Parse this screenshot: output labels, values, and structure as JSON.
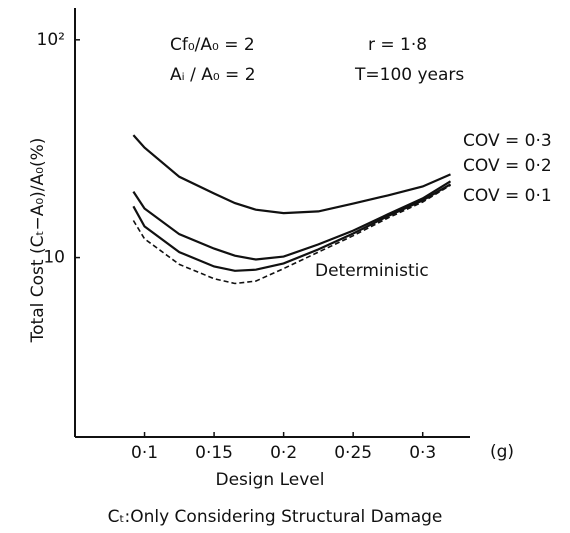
{
  "chart_data": {
    "type": "line",
    "annotations": [
      "Cf₀/A₀ = 2",
      "Aᵢ / A₀ = 2",
      "r = 1·8",
      "T=100 years"
    ],
    "y_label": "Total Cost  (Cₜ−A₀)/A₀(%)",
    "x_label": "Design Level",
    "x_unit": "(g)",
    "caption": "Cₜ:Only Considering Structural Damage",
    "x": [
      0.092,
      0.1,
      0.125,
      0.15,
      0.165,
      0.18,
      0.2,
      0.225,
      0.25,
      0.275,
      0.3,
      0.32
    ],
    "series": [
      {
        "name": "COV = 0·3",
        "color": "#111111",
        "dashed": false,
        "values": [
          36.5,
          32,
          23.5,
          19.7,
          17.8,
          16.6,
          16,
          16.3,
          17.7,
          19.3,
          21.2,
          24.1
        ]
      },
      {
        "name": "COV = 0·2",
        "color": "#111111",
        "dashed": false,
        "values": [
          20.1,
          16.8,
          12.8,
          11,
          10.2,
          9.8,
          10.1,
          11.5,
          13.3,
          15.8,
          18.7,
          22.4
        ]
      },
      {
        "name": "COV = 0·1",
        "color": "#111111",
        "dashed": false,
        "values": [
          17.2,
          13.9,
          10.6,
          9.1,
          8.7,
          8.8,
          9.4,
          10.9,
          12.9,
          15.5,
          18.3,
          21.7
        ]
      },
      {
        "name": "Deterministic",
        "color": "#111111",
        "dashed": true,
        "values": [
          14.8,
          12.2,
          9.3,
          8,
          7.6,
          7.8,
          8.9,
          10.6,
          12.6,
          15.2,
          18,
          21.5
        ]
      }
    ],
    "xlim": [
      0.05,
      0.334
    ],
    "ylim": [
      1.5,
      140
    ],
    "y_log": true,
    "xticks": [
      {
        "value": 0.1,
        "label": "0·1"
      },
      {
        "value": 0.15,
        "label": "0·15"
      },
      {
        "value": 0.2,
        "label": "0·2"
      },
      {
        "value": 0.25,
        "label": "0·25"
      },
      {
        "value": 0.3,
        "label": "0·3"
      }
    ],
    "yticks": [
      10,
      {
        "value": 100,
        "label": "10²"
      }
    ],
    "grid": false
  }
}
